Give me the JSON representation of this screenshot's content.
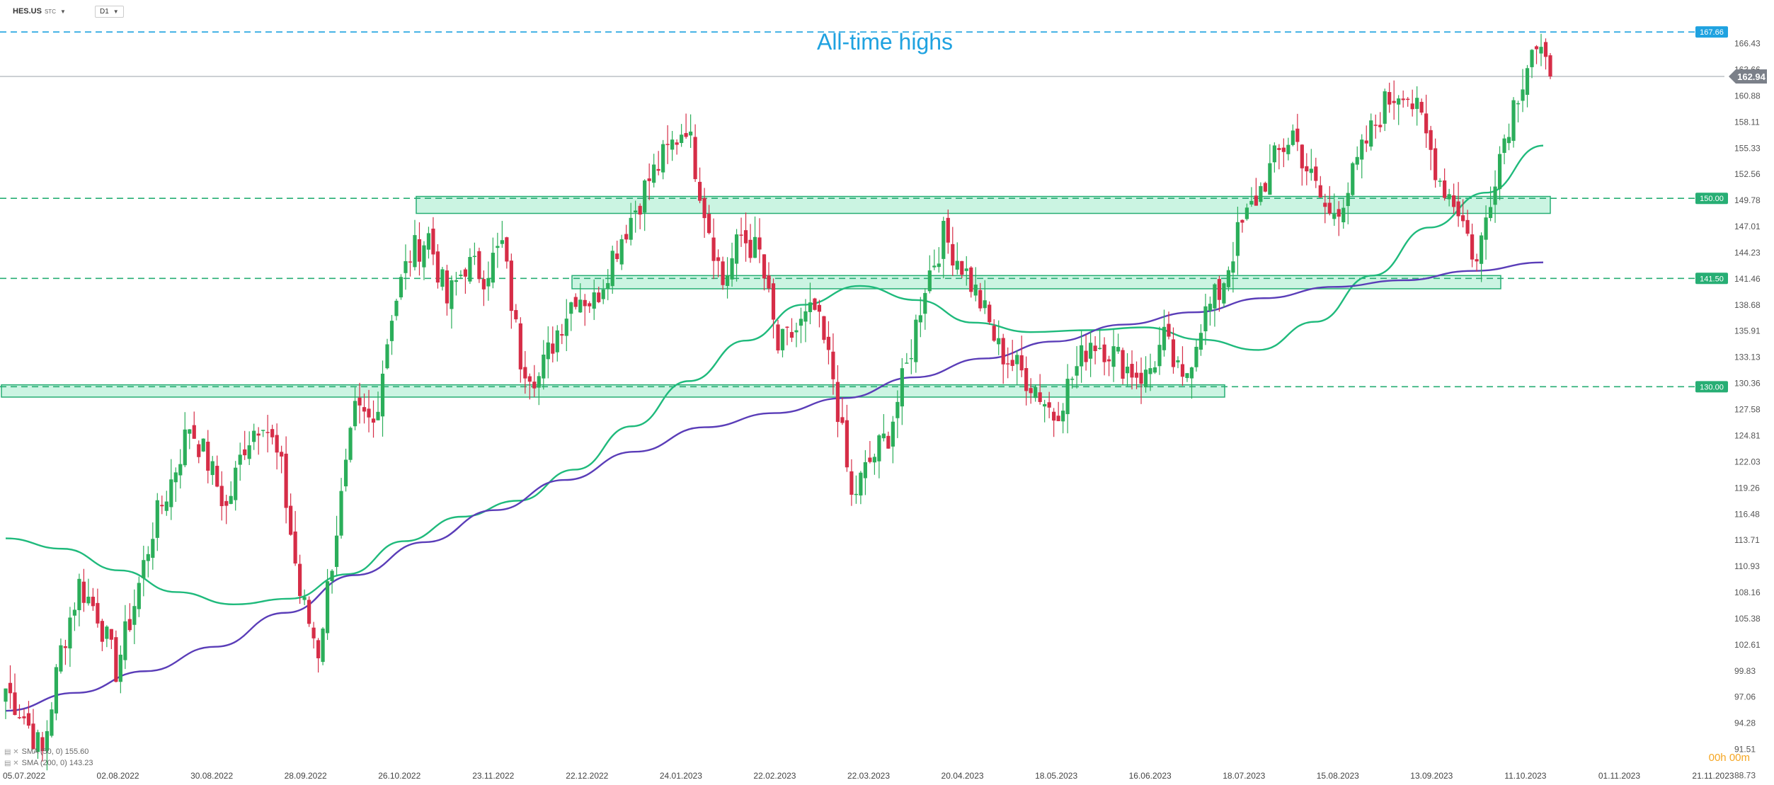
{
  "header": {
    "symbol": "HES.US",
    "symbol_suffix": "STC",
    "timeframe": "D1"
  },
  "legend": {
    "sma50": "SMA (50, 0) 155.60",
    "sma200": "SMA (200, 0) 143.23"
  },
  "timer": "00h 00m",
  "colors": {
    "up": "#2bae5a",
    "down": "#d62d47",
    "sma50": "#1fba7c",
    "sma200": "#5a3db8",
    "zone_fill": "#b9f0d8",
    "zone_stroke": "#27ae74",
    "highlight_blue": "#1fa2e0",
    "price_tag": "#7b8089"
  },
  "chart_data": {
    "type": "candlestick",
    "title": "",
    "annotation": "All-time highs",
    "xlabel": "",
    "ylabel": "",
    "ylim": [
      89.9,
      168.8
    ],
    "y_ticks": [
      "166.43",
      "163.66",
      "160.88",
      "158.11",
      "155.33",
      "152.56",
      "149.78",
      "147.01",
      "144.23",
      "141.46",
      "138.68",
      "135.91",
      "133.13",
      "130.36",
      "127.58",
      "124.81",
      "122.03",
      "119.26",
      "116.48",
      "113.71",
      "110.93",
      "108.16",
      "105.38",
      "102.61",
      "99.83",
      "97.06",
      "94.28",
      "91.51",
      "88.73"
    ],
    "x_ticks": [
      "05.07.2022",
      "02.08.2022",
      "30.08.2022",
      "28.09.2022",
      "26.10.2022",
      "23.11.2022",
      "22.12.2022",
      "24.01.2023",
      "22.02.2023",
      "22.03.2023",
      "20.04.2023",
      "18.05.2023",
      "16.06.2023",
      "18.07.2023",
      "15.08.2023",
      "13.09.2023",
      "11.10.2023",
      "01.11.2023",
      "21.11.2023"
    ],
    "current_price": 162.94,
    "levels": [
      {
        "value": 167.66,
        "label": "167.66"
      },
      {
        "value": 150.0,
        "label": "150.00"
      },
      {
        "value": 141.5,
        "label": "141.50"
      },
      {
        "value": 130.0,
        "label": "130.00"
      }
    ],
    "zones": [
      {
        "low": 148.4,
        "high": 150.2
      },
      {
        "low": 140.4,
        "high": 141.8
      },
      {
        "low": 128.9,
        "high": 130.2
      }
    ],
    "candles": [
      {
        "date": "05.07.2022",
        "close": 98
      },
      {
        "date": "10.07.2022",
        "close": 95
      },
      {
        "date": "15.07.2022",
        "close": 91
      },
      {
        "date": "20.07.2022",
        "close": 102
      },
      {
        "date": "25.07.2022",
        "close": 109
      },
      {
        "date": "02.08.2022",
        "close": 106
      },
      {
        "date": "06.08.2022",
        "close": 100
      },
      {
        "date": "10.08.2022",
        "close": 107
      },
      {
        "date": "15.08.2022",
        "close": 115
      },
      {
        "date": "20.08.2022",
        "close": 120
      },
      {
        "date": "25.08.2022",
        "close": 126
      },
      {
        "date": "30.08.2022",
        "close": 122
      },
      {
        "date": "05.09.2022",
        "close": 117
      },
      {
        "date": "10.09.2022",
        "close": 124
      },
      {
        "date": "15.09.2022",
        "close": 127
      },
      {
        "date": "20.09.2022",
        "close": 121
      },
      {
        "date": "28.09.2022",
        "close": 108
      },
      {
        "date": "02.10.2022",
        "close": 102
      },
      {
        "date": "07.10.2022",
        "close": 115
      },
      {
        "date": "12.10.2022",
        "close": 127
      },
      {
        "date": "17.10.2022",
        "close": 126
      },
      {
        "date": "26.10.2022",
        "close": 138
      },
      {
        "date": "31.10.2022",
        "close": 144
      },
      {
        "date": "05.11.2022",
        "close": 146
      },
      {
        "date": "10.11.2022",
        "close": 139
      },
      {
        "date": "15.11.2022",
        "close": 143
      },
      {
        "date": "23.11.2022",
        "close": 142
      },
      {
        "date": "28.11.2022",
        "close": 145
      },
      {
        "date": "03.12.2022",
        "close": 133
      },
      {
        "date": "08.12.2022",
        "close": 131
      },
      {
        "date": "14.12.2022",
        "close": 136
      },
      {
        "date": "22.12.2022",
        "close": 140
      },
      {
        "date": "28.12.2022",
        "close": 139
      },
      {
        "date": "04.01.2023",
        "close": 144
      },
      {
        "date": "09.01.2023",
        "close": 148
      },
      {
        "date": "14.01.2023",
        "close": 152
      },
      {
        "date": "19.01.2023",
        "close": 155
      },
      {
        "date": "24.01.2023",
        "close": 158
      },
      {
        "date": "30.01.2023",
        "close": 149
      },
      {
        "date": "04.02.2023",
        "close": 141
      },
      {
        "date": "09.02.2023",
        "close": 146
      },
      {
        "date": "15.02.2023",
        "close": 144
      },
      {
        "date": "22.02.2023",
        "close": 134
      },
      {
        "date": "27.02.2023",
        "close": 136
      },
      {
        "date": "04.03.2023",
        "close": 138
      },
      {
        "date": "09.03.2023",
        "close": 131
      },
      {
        "date": "15.03.2023",
        "close": 118
      },
      {
        "date": "22.03.2023",
        "close": 122
      },
      {
        "date": "27.03.2023",
        "close": 125
      },
      {
        "date": "01.04.2023",
        "close": 132
      },
      {
        "date": "07.04.2023",
        "close": 141
      },
      {
        "date": "13.04.2023",
        "close": 146
      },
      {
        "date": "20.04.2023",
        "close": 143
      },
      {
        "date": "25.04.2023",
        "close": 139
      },
      {
        "date": "01.05.2023",
        "close": 134
      },
      {
        "date": "07.05.2023",
        "close": 132
      },
      {
        "date": "12.05.2023",
        "close": 130
      },
      {
        "date": "18.05.2023",
        "close": 127
      },
      {
        "date": "23.05.2023",
        "close": 131
      },
      {
        "date": "29.05.2023",
        "close": 135
      },
      {
        "date": "04.06.2023",
        "close": 134
      },
      {
        "date": "10.06.2023",
        "close": 132
      },
      {
        "date": "16.06.2023",
        "close": 131
      },
      {
        "date": "21.06.2023",
        "close": 135
      },
      {
        "date": "27.06.2023",
        "close": 130
      },
      {
        "date": "03.07.2023",
        "close": 137
      },
      {
        "date": "10.07.2023",
        "close": 140
      },
      {
        "date": "18.07.2023",
        "close": 146
      },
      {
        "date": "23.07.2023",
        "close": 150
      },
      {
        "date": "29.07.2023",
        "close": 154
      },
      {
        "date": "04.08.2023",
        "close": 157
      },
      {
        "date": "10.08.2023",
        "close": 152
      },
      {
        "date": "15.08.2023",
        "close": 148
      },
      {
        "date": "21.08.2023",
        "close": 151
      },
      {
        "date": "27.08.2023",
        "close": 156
      },
      {
        "date": "02.09.2023",
        "close": 160
      },
      {
        "date": "08.09.2023",
        "close": 162
      },
      {
        "date": "13.09.2023",
        "close": 158
      },
      {
        "date": "18.09.2023",
        "close": 152
      },
      {
        "date": "24.09.2023",
        "close": 149
      },
      {
        "date": "29.09.2023",
        "close": 143
      },
      {
        "date": "04.10.2023",
        "close": 153
      },
      {
        "date": "08.10.2023",
        "close": 160
      },
      {
        "date": "11.10.2023",
        "close": 166
      },
      {
        "date": "13.10.2023",
        "close": 162.94
      }
    ],
    "series": [
      {
        "name": "SMA (50, 0)",
        "values": [
          113.9,
          112.8,
          110.5,
          108.2,
          106.9,
          107.5,
          110.1,
          113.6,
          116.2,
          117.9,
          121.2,
          125.8,
          130.6,
          134.9,
          138.7,
          140.7,
          139.2,
          136.8,
          135.8,
          136.0,
          136.3,
          135.0,
          133.9,
          136.9,
          141.8,
          146.9,
          150.6,
          155.6
        ]
      },
      {
        "name": "SMA (200, 0)",
        "values": [
          95.6,
          97.5,
          99.8,
          102.4,
          106.0,
          110.0,
          113.5,
          116.9,
          120.1,
          123.1,
          125.7,
          127.2,
          128.8,
          131.0,
          133.0,
          134.8,
          136.6,
          137.9,
          139.4,
          140.6,
          141.3,
          142.3,
          143.2
        ]
      }
    ]
  }
}
